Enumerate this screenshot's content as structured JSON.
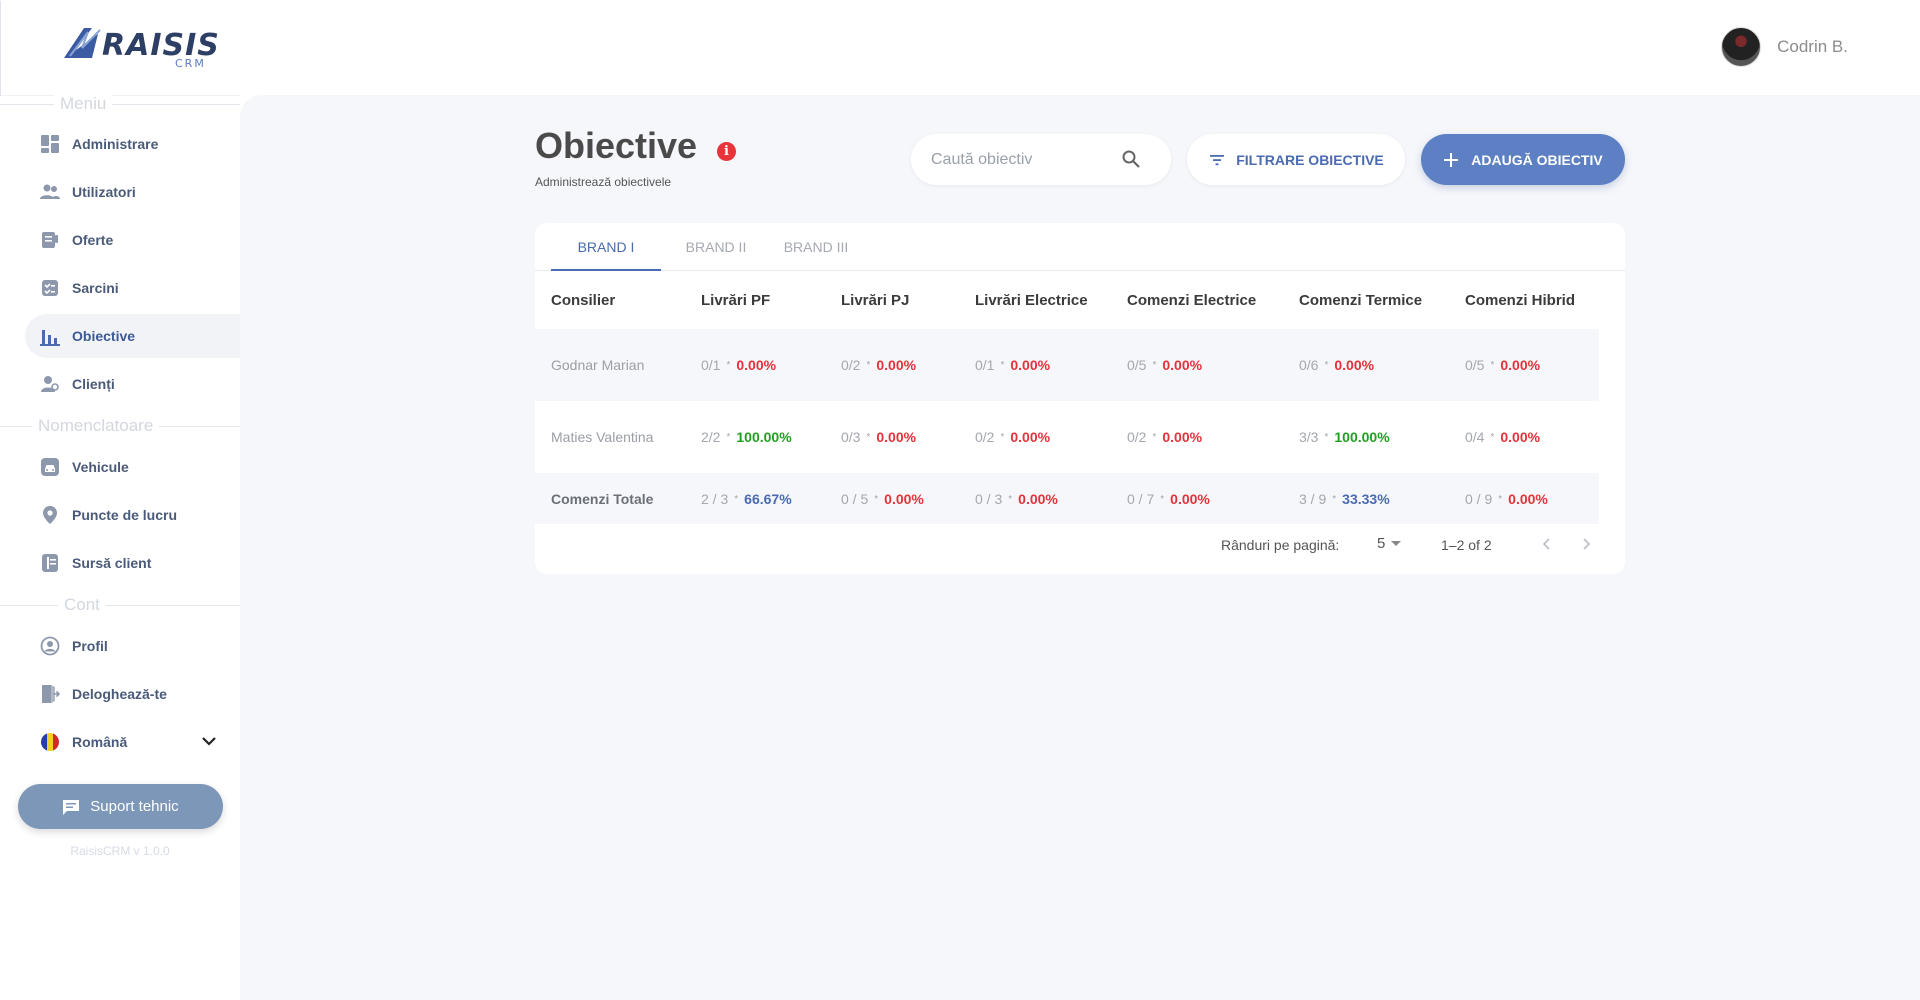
{
  "header": {
    "logo_text": "RAISIS",
    "logo_sub": "CRM",
    "user_name": "Codrin B."
  },
  "sidebar": {
    "sections": {
      "menu": "Meniu",
      "nomenclature": "Nomenclatoare",
      "account": "Cont"
    },
    "items": [
      {
        "label": "Administrare",
        "icon": "dashboard-icon"
      },
      {
        "label": "Utilizatori",
        "icon": "users-icon"
      },
      {
        "label": "Oferte",
        "icon": "offers-icon"
      },
      {
        "label": "Sarcini",
        "icon": "tasks-icon"
      },
      {
        "label": "Obiective",
        "icon": "bar-chart-icon",
        "active": true
      },
      {
        "label": "Clienți",
        "icon": "clients-icon"
      },
      {
        "label": "Vehicule",
        "icon": "vehicle-icon"
      },
      {
        "label": "Puncte de lucru",
        "icon": "location-pin-icon"
      },
      {
        "label": "Sursă client",
        "icon": "source-icon"
      },
      {
        "label": "Profil",
        "icon": "profile-icon"
      },
      {
        "label": "Deloghează-te",
        "icon": "logout-icon"
      },
      {
        "label": "Română",
        "icon": "romania-flag-icon"
      }
    ],
    "support_label": "Suport tehnic",
    "version": "RaisisCRM v 1.0.0"
  },
  "main": {
    "title": "Obiective",
    "subtitle": "Administrează obiectivele",
    "search_placeholder": "Caută obiectiv",
    "filter_label": "FILTRARE OBIECTIVE",
    "add_label": "ADAUGĂ OBIECTIV",
    "tabs": [
      "BRAND I",
      "BRAND II",
      "BRAND III"
    ],
    "active_tab": 0,
    "table": {
      "columns": [
        "Consilier",
        "Livrări PF",
        "Livrări PJ",
        "Livrări Electrice",
        "Comenzi Electrice",
        "Comenzi Termice",
        "Comenzi Hibrid"
      ],
      "rows": [
        {
          "name": "Godnar Marian",
          "cells": [
            {
              "frac": "0/1",
              "pct": "0.00%",
              "status": "red"
            },
            {
              "frac": "0/2",
              "pct": "0.00%",
              "status": "red"
            },
            {
              "frac": "0/1",
              "pct": "0.00%",
              "status": "red"
            },
            {
              "frac": "0/5",
              "pct": "0.00%",
              "status": "red"
            },
            {
              "frac": "0/6",
              "pct": "0.00%",
              "status": "red"
            },
            {
              "frac": "0/5",
              "pct": "0.00%",
              "status": "red"
            }
          ]
        },
        {
          "name": "Maties Valentina",
          "cells": [
            {
              "frac": "2/2",
              "pct": "100.00%",
              "status": "green"
            },
            {
              "frac": "0/3",
              "pct": "0.00%",
              "status": "red"
            },
            {
              "frac": "0/2",
              "pct": "0.00%",
              "status": "red"
            },
            {
              "frac": "0/2",
              "pct": "0.00%",
              "status": "red"
            },
            {
              "frac": "3/3",
              "pct": "100.00%",
              "status": "green"
            },
            {
              "frac": "0/4",
              "pct": "0.00%",
              "status": "red"
            }
          ]
        }
      ],
      "totals": {
        "name": "Comenzi Totale",
        "cells": [
          {
            "frac": "2 / 3",
            "pct": "66.67%",
            "status": "blue"
          },
          {
            "frac": "0 / 5",
            "pct": "0.00%",
            "status": "red"
          },
          {
            "frac": "0 / 3",
            "pct": "0.00%",
            "status": "red"
          },
          {
            "frac": "0 / 7",
            "pct": "0.00%",
            "status": "red"
          },
          {
            "frac": "3 / 9",
            "pct": "33.33%",
            "status": "blue"
          },
          {
            "frac": "0 / 9",
            "pct": "0.00%",
            "status": "red"
          }
        ]
      }
    },
    "pagination": {
      "rows_label": "Rânduri pe pagină:",
      "rows_value": "5",
      "range": "1–2 of 2"
    }
  },
  "colors": {
    "accent": "#4a6bb0",
    "button_primary": "#5d80c4",
    "danger": "#e4323a",
    "success": "#20a020",
    "support_button": "#7d97b8"
  }
}
